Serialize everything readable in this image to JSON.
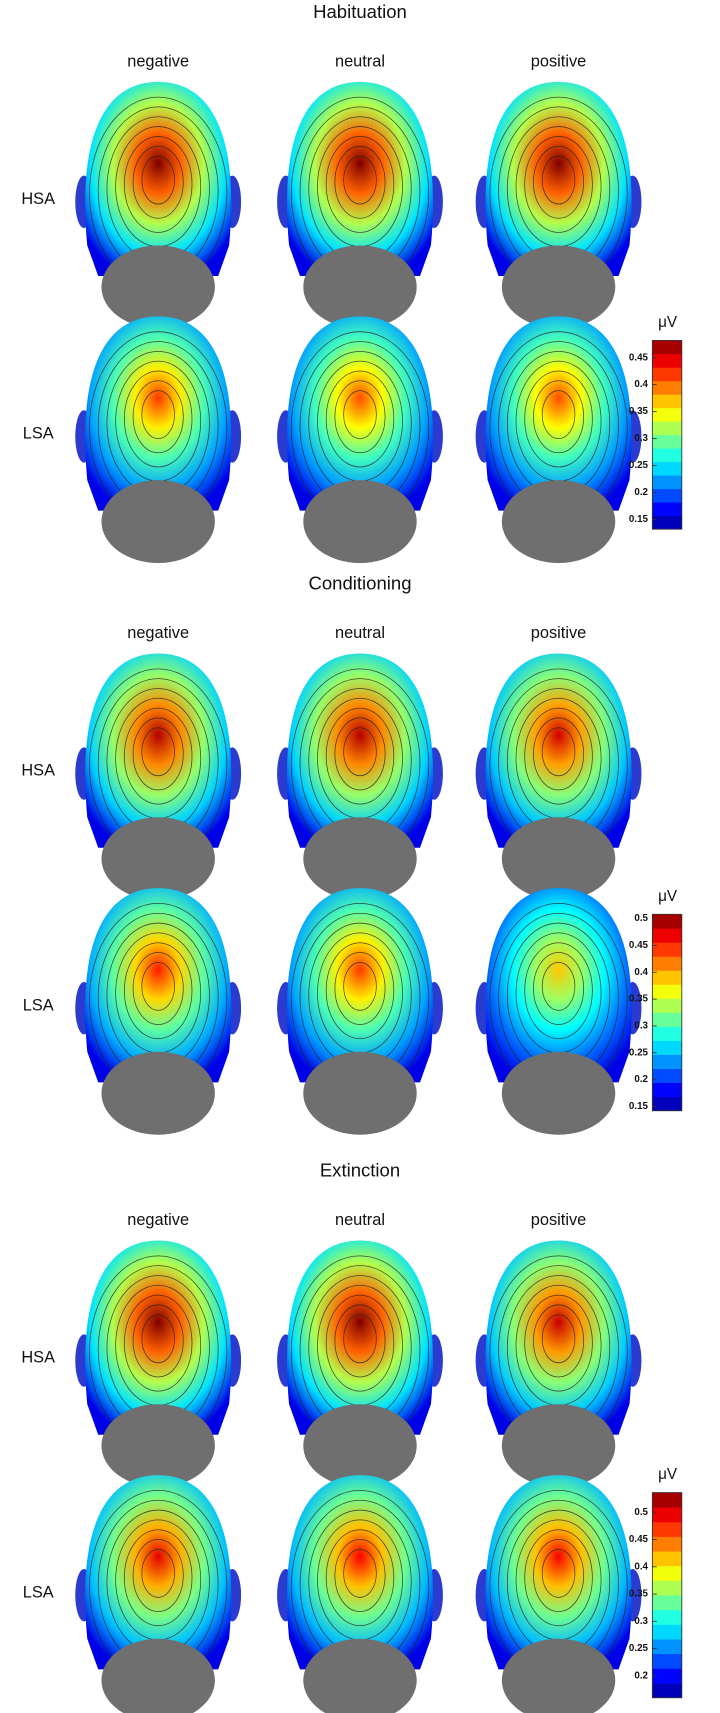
{
  "panels": [
    {
      "title": "Habituation",
      "columns": [
        "negative",
        "neutral",
        "positive"
      ],
      "rows": [
        "HSA",
        "LSA"
      ],
      "colorbar": {
        "unit": "μV",
        "lim": [
          0.132,
          0.482
        ],
        "ticks": [
          0.15,
          0.2,
          0.25,
          0.3,
          0.35,
          0.4,
          0.45
        ]
      }
    },
    {
      "title": "Conditioning",
      "columns": [
        "negative",
        "neutral",
        "positive"
      ],
      "rows": [
        "HSA",
        "LSA"
      ],
      "colorbar": {
        "unit": "μV",
        "lim": [
          0.142,
          0.508
        ],
        "ticks": [
          0.15,
          0.2,
          0.25,
          0.3,
          0.35,
          0.4,
          0.45,
          0.5
        ]
      }
    },
    {
      "title": "Extinction",
      "columns": [
        "negative",
        "neutral",
        "positive"
      ],
      "rows": [
        "HSA",
        "LSA"
      ],
      "colorbar": {
        "unit": "μV",
        "lim": [
          0.16,
          0.536
        ],
        "ticks": [
          0.2,
          0.25,
          0.3,
          0.35,
          0.4,
          0.45,
          0.5
        ]
      }
    }
  ]
}
